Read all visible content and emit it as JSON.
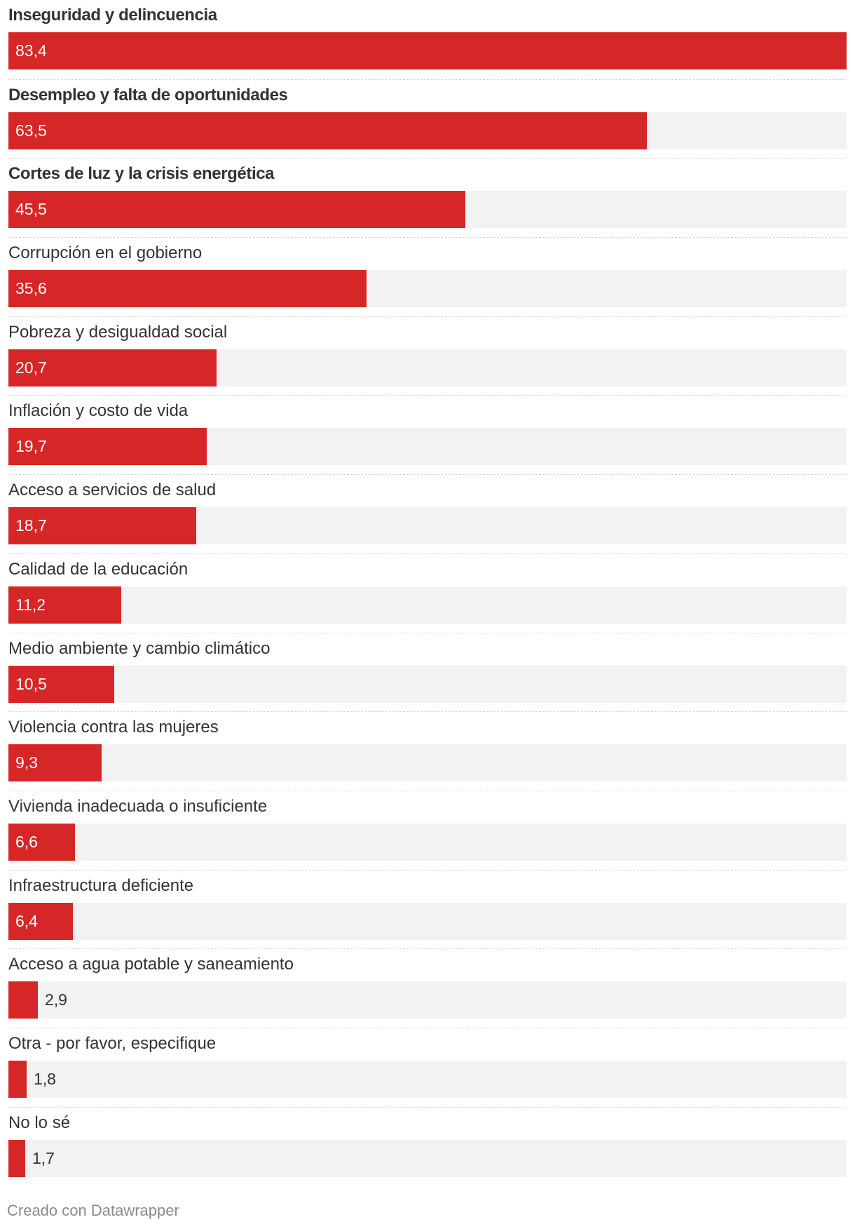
{
  "chart_data": {
    "type": "bar",
    "orientation": "horizontal",
    "title": "",
    "xlabel": "",
    "ylabel": "",
    "xlim": [
      0,
      83.4
    ],
    "grid": false,
    "legend": "none",
    "bar_color": "#d62728",
    "track_color": "#f2f2f2",
    "categories": [
      "Inseguridad y delincuencia",
      "Desempleo y falta de oportunidades",
      "Cortes de luz y la crisis energética",
      "Corrupción en el gobierno",
      "Pobreza y desigualdad social",
      "Inflación y costo de vida",
      "Acceso a servicios de salud",
      "Calidad de la educación",
      "Medio ambiente y cambio climático",
      "Violencia contra las mujeres",
      "Vivienda inadecuada o insuficiente",
      "Infraestructura deficiente",
      "Acceso a agua potable y saneamiento",
      "Otra - por favor, especifique",
      "No lo sé"
    ],
    "values": [
      83.4,
      63.5,
      45.5,
      35.6,
      20.7,
      19.7,
      18.7,
      11.2,
      10.5,
      9.3,
      6.6,
      6.4,
      2.9,
      1.8,
      1.7
    ],
    "value_labels": [
      "83,4",
      "63,5",
      "45,5",
      "35,6",
      "20,7",
      "19,7",
      "18,7",
      "11,2",
      "10,5",
      "9,3",
      "6,6",
      "6,4",
      "2,9",
      "1,8",
      "1,7"
    ],
    "bold_categories": 3
  },
  "footer": {
    "credit": "Creado con Datawrapper"
  }
}
